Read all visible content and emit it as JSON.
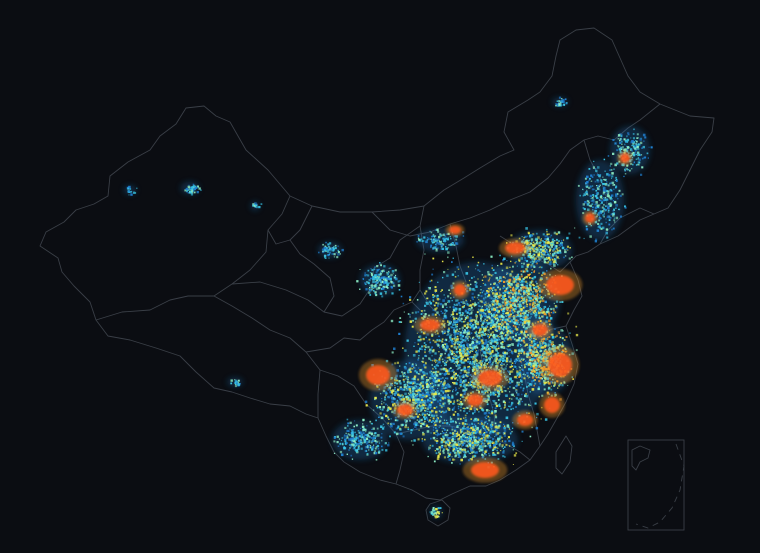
{
  "map": {
    "background_color": "#0b0d12",
    "border_color": "#3a3f47",
    "color_scale": [
      "#0a2a5a",
      "#1f7fd0",
      "#39c6e6",
      "#8ef0c6",
      "#e8e84a",
      "#f29a2a",
      "#ff5a1c"
    ],
    "labels": []
  }
}
